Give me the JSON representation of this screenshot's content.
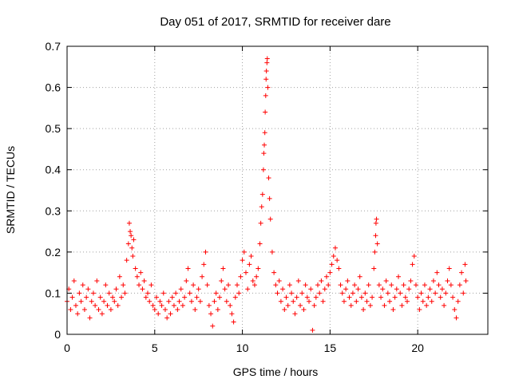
{
  "chart_data": {
    "type": "scatter",
    "title": "Day 051 of 2017, SRMTID for receiver dare",
    "xlabel": "GPS time / hours",
    "ylabel": "SRMTID / TECUs",
    "xlim": [
      0,
      24
    ],
    "ylim": [
      0,
      0.7
    ],
    "xticks": [
      0,
      5,
      10,
      15,
      20
    ],
    "xtick_labels": [
      "0",
      "5",
      "10",
      "15",
      "20"
    ],
    "yticks": [
      0,
      0.1,
      0.2,
      0.3,
      0.4,
      0.5,
      0.6,
      0.7
    ],
    "ytick_labels": [
      "0",
      "0.1",
      "0.2",
      "0.3",
      "0.4",
      "0.5",
      "0.6",
      "0.7"
    ],
    "grid": true,
    "marker": "+",
    "series": [
      {
        "name": "SRMTID",
        "color": "#ff0000",
        "points": [
          [
            0.0,
            0.08
          ],
          [
            0.1,
            0.11
          ],
          [
            0.2,
            0.06
          ],
          [
            0.3,
            0.09
          ],
          [
            0.4,
            0.13
          ],
          [
            0.5,
            0.07
          ],
          [
            0.6,
            0.05
          ],
          [
            0.7,
            0.1
          ],
          [
            0.8,
            0.08
          ],
          [
            0.9,
            0.12
          ],
          [
            1.0,
            0.06
          ],
          [
            1.1,
            0.09
          ],
          [
            1.2,
            0.11
          ],
          [
            1.3,
            0.04
          ],
          [
            1.4,
            0.08
          ],
          [
            1.5,
            0.1
          ],
          [
            1.6,
            0.07
          ],
          [
            1.7,
            0.13
          ],
          [
            1.8,
            0.06
          ],
          [
            1.9,
            0.09
          ],
          [
            2.0,
            0.05
          ],
          [
            2.1,
            0.08
          ],
          [
            2.2,
            0.12
          ],
          [
            2.3,
            0.07
          ],
          [
            2.4,
            0.1
          ],
          [
            2.5,
            0.06
          ],
          [
            2.6,
            0.09
          ],
          [
            2.7,
            0.08
          ],
          [
            2.8,
            0.11
          ],
          [
            2.9,
            0.07
          ],
          [
            3.0,
            0.14
          ],
          [
            3.1,
            0.09
          ],
          [
            3.2,
            0.12
          ],
          [
            3.3,
            0.1
          ],
          [
            3.4,
            0.18
          ],
          [
            3.5,
            0.22
          ],
          [
            3.55,
            0.27
          ],
          [
            3.6,
            0.25
          ],
          [
            3.65,
            0.24
          ],
          [
            3.7,
            0.21
          ],
          [
            3.75,
            0.19
          ],
          [
            3.8,
            0.23
          ],
          [
            3.9,
            0.16
          ],
          [
            4.0,
            0.14
          ],
          [
            4.1,
            0.12
          ],
          [
            4.2,
            0.15
          ],
          [
            4.3,
            0.11
          ],
          [
            4.4,
            0.13
          ],
          [
            4.5,
            0.09
          ],
          [
            4.6,
            0.1
          ],
          [
            4.7,
            0.08
          ],
          [
            4.8,
            0.12
          ],
          [
            4.9,
            0.07
          ],
          [
            5.0,
            0.06
          ],
          [
            5.1,
            0.09
          ],
          [
            5.2,
            0.05
          ],
          [
            5.3,
            0.08
          ],
          [
            5.4,
            0.07
          ],
          [
            5.5,
            0.1
          ],
          [
            5.6,
            0.06
          ],
          [
            5.7,
            0.04
          ],
          [
            5.8,
            0.08
          ],
          [
            5.9,
            0.05
          ],
          [
            6.0,
            0.09
          ],
          [
            6.1,
            0.07
          ],
          [
            6.2,
            0.1
          ],
          [
            6.3,
            0.06
          ],
          [
            6.4,
            0.08
          ],
          [
            6.5,
            0.11
          ],
          [
            6.6,
            0.07
          ],
          [
            6.7,
            0.09
          ],
          [
            6.8,
            0.13
          ],
          [
            6.9,
            0.16
          ],
          [
            7.0,
            0.1
          ],
          [
            7.1,
            0.08
          ],
          [
            7.2,
            0.12
          ],
          [
            7.3,
            0.06
          ],
          [
            7.4,
            0.09
          ],
          [
            7.5,
            0.11
          ],
          [
            7.6,
            0.08
          ],
          [
            7.7,
            0.14
          ],
          [
            7.8,
            0.17
          ],
          [
            7.9,
            0.2
          ],
          [
            8.0,
            0.12
          ],
          [
            8.1,
            0.07
          ],
          [
            8.2,
            0.05
          ],
          [
            8.3,
            0.02
          ],
          [
            8.4,
            0.08
          ],
          [
            8.5,
            0.1
          ],
          [
            8.6,
            0.06
          ],
          [
            8.7,
            0.09
          ],
          [
            8.8,
            0.13
          ],
          [
            8.9,
            0.16
          ],
          [
            9.0,
            0.11
          ],
          [
            9.1,
            0.08
          ],
          [
            9.2,
            0.12
          ],
          [
            9.3,
            0.07
          ],
          [
            9.4,
            0.05
          ],
          [
            9.5,
            0.03
          ],
          [
            9.6,
            0.09
          ],
          [
            9.7,
            0.12
          ],
          [
            9.8,
            0.1
          ],
          [
            9.9,
            0.14
          ],
          [
            10.0,
            0.18
          ],
          [
            10.1,
            0.2
          ],
          [
            10.2,
            0.15
          ],
          [
            10.3,
            0.11
          ],
          [
            10.4,
            0.17
          ],
          [
            10.5,
            0.19
          ],
          [
            10.6,
            0.13
          ],
          [
            10.7,
            0.12
          ],
          [
            10.8,
            0.14
          ],
          [
            10.9,
            0.16
          ],
          [
            11.0,
            0.22
          ],
          [
            11.05,
            0.27
          ],
          [
            11.1,
            0.31
          ],
          [
            11.15,
            0.34
          ],
          [
            11.2,
            0.4
          ],
          [
            11.22,
            0.44
          ],
          [
            11.25,
            0.46
          ],
          [
            11.28,
            0.49
          ],
          [
            11.3,
            0.54
          ],
          [
            11.33,
            0.58
          ],
          [
            11.35,
            0.62
          ],
          [
            11.37,
            0.64
          ],
          [
            11.4,
            0.66
          ],
          [
            11.42,
            0.67
          ],
          [
            11.45,
            0.6
          ],
          [
            11.5,
            0.38
          ],
          [
            11.55,
            0.33
          ],
          [
            11.6,
            0.28
          ],
          [
            11.7,
            0.2
          ],
          [
            11.8,
            0.15
          ],
          [
            11.9,
            0.12
          ],
          [
            12.0,
            0.1
          ],
          [
            12.1,
            0.13
          ],
          [
            12.2,
            0.08
          ],
          [
            12.3,
            0.11
          ],
          [
            12.4,
            0.06
          ],
          [
            12.5,
            0.09
          ],
          [
            12.6,
            0.07
          ],
          [
            12.7,
            0.12
          ],
          [
            12.8,
            0.1
          ],
          [
            12.9,
            0.08
          ],
          [
            13.0,
            0.05
          ],
          [
            13.1,
            0.09
          ],
          [
            13.2,
            0.13
          ],
          [
            13.3,
            0.07
          ],
          [
            13.4,
            0.1
          ],
          [
            13.5,
            0.06
          ],
          [
            13.6,
            0.12
          ],
          [
            13.7,
            0.09
          ],
          [
            13.8,
            0.08
          ],
          [
            13.9,
            0.11
          ],
          [
            14.0,
            0.01
          ],
          [
            14.1,
            0.07
          ],
          [
            14.2,
            0.09
          ],
          [
            14.3,
            0.12
          ],
          [
            14.4,
            0.1
          ],
          [
            14.5,
            0.13
          ],
          [
            14.6,
            0.08
          ],
          [
            14.7,
            0.11
          ],
          [
            14.8,
            0.14
          ],
          [
            14.9,
            0.12
          ],
          [
            15.0,
            0.15
          ],
          [
            15.1,
            0.17
          ],
          [
            15.2,
            0.19
          ],
          [
            15.3,
            0.21
          ],
          [
            15.4,
            0.18
          ],
          [
            15.5,
            0.16
          ],
          [
            15.6,
            0.12
          ],
          [
            15.7,
            0.1
          ],
          [
            15.8,
            0.08
          ],
          [
            15.9,
            0.11
          ],
          [
            16.0,
            0.13
          ],
          [
            16.1,
            0.09
          ],
          [
            16.2,
            0.07
          ],
          [
            16.3,
            0.1
          ],
          [
            16.4,
            0.12
          ],
          [
            16.5,
            0.08
          ],
          [
            16.6,
            0.11
          ],
          [
            16.7,
            0.14
          ],
          [
            16.8,
            0.09
          ],
          [
            16.9,
            0.06
          ],
          [
            17.0,
            0.1
          ],
          [
            17.1,
            0.08
          ],
          [
            17.2,
            0.12
          ],
          [
            17.3,
            0.07
          ],
          [
            17.4,
            0.09
          ],
          [
            17.5,
            0.16
          ],
          [
            17.55,
            0.2
          ],
          [
            17.6,
            0.24
          ],
          [
            17.62,
            0.27
          ],
          [
            17.65,
            0.28
          ],
          [
            17.7,
            0.22
          ],
          [
            17.8,
            0.12
          ],
          [
            17.9,
            0.09
          ],
          [
            18.0,
            0.11
          ],
          [
            18.1,
            0.07
          ],
          [
            18.2,
            0.13
          ],
          [
            18.3,
            0.1
          ],
          [
            18.4,
            0.08
          ],
          [
            18.5,
            0.12
          ],
          [
            18.6,
            0.06
          ],
          [
            18.7,
            0.09
          ],
          [
            18.8,
            0.11
          ],
          [
            18.9,
            0.14
          ],
          [
            19.0,
            0.1
          ],
          [
            19.1,
            0.07
          ],
          [
            19.2,
            0.12
          ],
          [
            19.3,
            0.09
          ],
          [
            19.4,
            0.08
          ],
          [
            19.5,
            0.11
          ],
          [
            19.6,
            0.13
          ],
          [
            19.7,
            0.17
          ],
          [
            19.8,
            0.19
          ],
          [
            19.9,
            0.12
          ],
          [
            20.0,
            0.09
          ],
          [
            20.1,
            0.06
          ],
          [
            20.2,
            0.1
          ],
          [
            20.3,
            0.08
          ],
          [
            20.4,
            0.12
          ],
          [
            20.5,
            0.07
          ],
          [
            20.6,
            0.09
          ],
          [
            20.7,
            0.11
          ],
          [
            20.8,
            0.08
          ],
          [
            20.9,
            0.13
          ],
          [
            21.0,
            0.1
          ],
          [
            21.1,
            0.15
          ],
          [
            21.2,
            0.12
          ],
          [
            21.3,
            0.09
          ],
          [
            21.4,
            0.11
          ],
          [
            21.5,
            0.07
          ],
          [
            21.6,
            0.1
          ],
          [
            21.7,
            0.13
          ],
          [
            21.8,
            0.16
          ],
          [
            21.9,
            0.12
          ],
          [
            22.0,
            0.09
          ],
          [
            22.1,
            0.06
          ],
          [
            22.2,
            0.04
          ],
          [
            22.3,
            0.08
          ],
          [
            22.4,
            0.12
          ],
          [
            22.5,
            0.15
          ],
          [
            22.6,
            0.1
          ],
          [
            22.7,
            0.17
          ],
          [
            22.75,
            0.13
          ]
        ]
      }
    ]
  }
}
